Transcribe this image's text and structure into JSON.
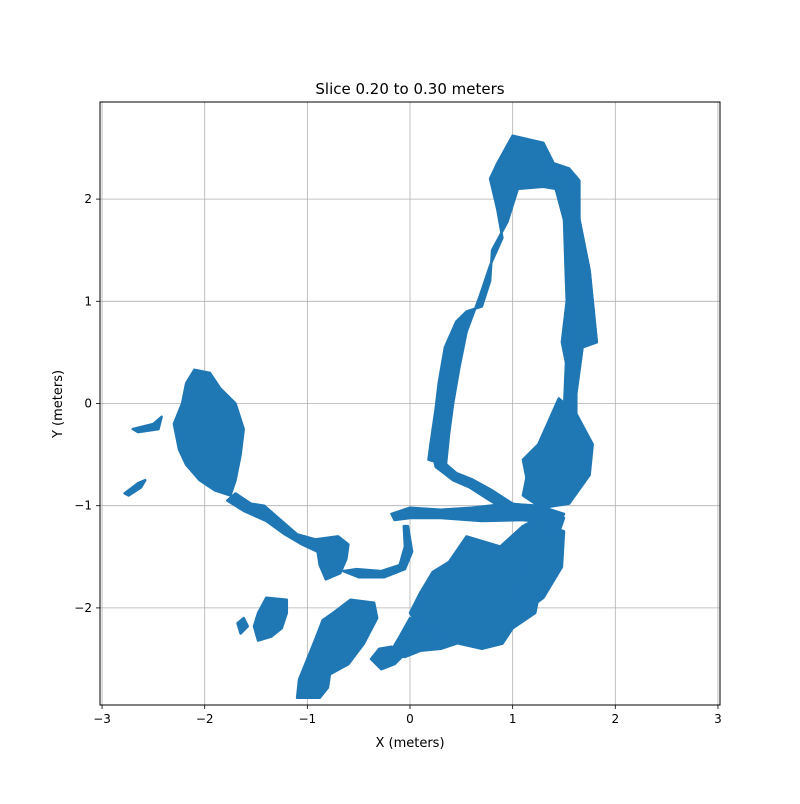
{
  "chart_data": {
    "type": "scatter",
    "title": "Slice 0.20 to 0.30 meters",
    "xlabel": "X (meters)",
    "ylabel": "Y (meters)",
    "xlim": [
      -3.02,
      3.02
    ],
    "ylim": [
      -2.95,
      2.95
    ],
    "xticks": [
      -3,
      -2,
      -1,
      0,
      1,
      2,
      3
    ],
    "yticks": [
      -2,
      -1,
      0,
      1,
      2
    ],
    "xtick_labels": [
      "−3",
      "−2",
      "−1",
      "0",
      "1",
      "2",
      "3"
    ],
    "ytick_labels": [
      "−2",
      "−1",
      "0",
      "1",
      "2"
    ],
    "grid": true,
    "legend": "none",
    "series": [
      {
        "color": "#1f77b4",
        "blobs": [
          [
            [
              1.0,
              2.62
            ],
            [
              1.3,
              2.55
            ],
            [
              1.4,
              2.35
            ],
            [
              1.55,
              2.3
            ],
            [
              1.65,
              2.18
            ],
            [
              1.65,
              1.8
            ],
            [
              1.75,
              1.3
            ],
            [
              1.82,
              0.6
            ],
            [
              1.68,
              0.55
            ],
            [
              1.62,
              0.1
            ],
            [
              1.62,
              -0.35
            ],
            [
              1.72,
              -0.55
            ],
            [
              1.62,
              -0.8
            ],
            [
              1.45,
              -0.98
            ],
            [
              1.25,
              -1.0
            ],
            [
              1.1,
              -0.9
            ],
            [
              1.18,
              -0.5
            ],
            [
              1.5,
              -0.05
            ],
            [
              1.52,
              0.4
            ],
            [
              1.48,
              0.6
            ],
            [
              1.55,
              1.2
            ],
            [
              1.5,
              1.8
            ],
            [
              1.42,
              2.1
            ],
            [
              1.3,
              2.12
            ],
            [
              1.05,
              2.1
            ],
            [
              0.95,
              1.78
            ],
            [
              0.8,
              1.5
            ],
            [
              0.78,
              1.2
            ],
            [
              0.7,
              0.95
            ],
            [
              0.55,
              0.9
            ],
            [
              0.45,
              0.8
            ],
            [
              0.34,
              0.55
            ],
            [
              0.28,
              0.2
            ],
            [
              0.25,
              -0.05
            ],
            [
              0.2,
              -0.4
            ],
            [
              0.18,
              -0.55
            ],
            [
              0.35,
              -0.6
            ],
            [
              0.38,
              -0.3
            ],
            [
              0.42,
              0.0
            ],
            [
              0.48,
              0.35
            ],
            [
              0.55,
              0.7
            ],
            [
              0.68,
              1.05
            ],
            [
              0.78,
              1.35
            ],
            [
              0.9,
              1.62
            ],
            [
              0.85,
              1.9
            ],
            [
              0.78,
              2.2
            ],
            [
              0.85,
              2.35
            ]
          ],
          [
            [
              1.32,
              2.3
            ],
            [
              1.62,
              2.22
            ],
            [
              1.65,
              1.8
            ],
            [
              1.75,
              1.3
            ],
            [
              1.82,
              0.6
            ],
            [
              1.68,
              0.55
            ],
            [
              1.62,
              0.1
            ],
            [
              1.55,
              0.4
            ],
            [
              1.52,
              1.2
            ],
            [
              1.5,
              1.8
            ],
            [
              1.42,
              2.1
            ]
          ],
          [
            [
              1.45,
              0.05
            ],
            [
              1.62,
              -0.1
            ],
            [
              1.78,
              -0.4
            ],
            [
              1.75,
              -0.7
            ],
            [
              1.55,
              -0.98
            ],
            [
              1.3,
              -1.02
            ],
            [
              1.15,
              -0.8
            ],
            [
              1.1,
              -0.55
            ],
            [
              1.25,
              -0.4
            ]
          ],
          [
            [
              0.2,
              -0.4
            ],
            [
              0.3,
              -0.55
            ],
            [
              0.45,
              -0.68
            ],
            [
              0.6,
              -0.74
            ],
            [
              0.8,
              -0.85
            ],
            [
              1.0,
              -0.98
            ],
            [
              1.15,
              -1.0
            ],
            [
              1.12,
              -1.07
            ],
            [
              0.95,
              -1.05
            ],
            [
              0.78,
              -0.95
            ],
            [
              0.58,
              -0.82
            ],
            [
              0.42,
              -0.75
            ],
            [
              0.25,
              -0.62
            ]
          ],
          [
            [
              -0.18,
              -1.08
            ],
            [
              0.0,
              -1.02
            ],
            [
              0.3,
              -1.04
            ],
            [
              0.6,
              -1.02
            ],
            [
              0.95,
              -0.98
            ],
            [
              1.25,
              -1.0
            ],
            [
              1.5,
              -1.08
            ],
            [
              1.45,
              -1.18
            ],
            [
              1.1,
              -1.14
            ],
            [
              0.7,
              -1.15
            ],
            [
              0.3,
              -1.12
            ],
            [
              0.0,
              -1.12
            ],
            [
              -0.15,
              -1.14
            ]
          ],
          [
            [
              -0.02,
              -1.2
            ],
            [
              0.02,
              -1.45
            ],
            [
              -0.05,
              -1.62
            ],
            [
              -0.25,
              -1.7
            ],
            [
              -0.5,
              -1.7
            ],
            [
              -0.65,
              -1.64
            ],
            [
              -0.52,
              -1.62
            ],
            [
              -0.28,
              -1.64
            ],
            [
              -0.1,
              -1.58
            ],
            [
              -0.05,
              -1.4
            ],
            [
              -0.06,
              -1.2
            ]
          ],
          [
            [
              0.55,
              -1.3
            ],
            [
              0.88,
              -1.4
            ],
            [
              1.1,
              -1.2
            ],
            [
              1.38,
              -1.05
            ],
            [
              1.5,
              -1.12
            ],
            [
              1.42,
              -1.35
            ],
            [
              1.28,
              -1.6
            ],
            [
              1.25,
              -1.9
            ],
            [
              1.22,
              -2.05
            ],
            [
              1.0,
              -2.2
            ],
            [
              0.9,
              -2.35
            ],
            [
              0.7,
              -2.4
            ],
            [
              0.48,
              -2.35
            ],
            [
              0.25,
              -2.3
            ],
            [
              0.1,
              -2.2
            ],
            [
              0.0,
              -2.05
            ],
            [
              0.1,
              -1.85
            ],
            [
              0.22,
              -1.65
            ],
            [
              0.38,
              -1.55
            ]
          ],
          [
            [
              1.35,
              -1.2
            ],
            [
              1.5,
              -1.25
            ],
            [
              1.48,
              -1.6
            ],
            [
              1.3,
              -1.9
            ],
            [
              1.1,
              -2.05
            ],
            [
              1.05,
              -1.8
            ],
            [
              1.15,
              -1.55
            ]
          ],
          [
            [
              0.0,
              -2.1
            ],
            [
              0.3,
              -2.25
            ],
            [
              0.45,
              -2.35
            ],
            [
              0.3,
              -2.4
            ],
            [
              0.1,
              -2.42
            ],
            [
              -0.05,
              -2.48
            ],
            [
              -0.2,
              -2.45
            ],
            [
              -0.1,
              -2.28
            ]
          ],
          [
            [
              -0.05,
              -2.45
            ],
            [
              -0.15,
              -2.55
            ],
            [
              -0.28,
              -2.6
            ],
            [
              -0.38,
              -2.5
            ],
            [
              -0.3,
              -2.4
            ],
            [
              -0.18,
              -2.38
            ]
          ],
          [
            [
              -0.58,
              -1.92
            ],
            [
              -0.35,
              -1.95
            ],
            [
              -0.32,
              -2.1
            ],
            [
              -0.45,
              -2.35
            ],
            [
              -0.6,
              -2.55
            ],
            [
              -0.78,
              -2.65
            ],
            [
              -0.8,
              -2.78
            ],
            [
              -0.88,
              -2.88
            ],
            [
              -1.1,
              -2.88
            ],
            [
              -1.08,
              -2.7
            ],
            [
              -1.0,
              -2.5
            ],
            [
              -0.92,
              -2.3
            ],
            [
              -0.85,
              -2.12
            ],
            [
              -0.75,
              -2.05
            ]
          ],
          [
            [
              -1.4,
              -1.9
            ],
            [
              -1.2,
              -1.92
            ],
            [
              -1.2,
              -2.05
            ],
            [
              -1.25,
              -2.2
            ],
            [
              -1.35,
              -2.28
            ],
            [
              -1.48,
              -2.32
            ],
            [
              -1.52,
              -2.18
            ],
            [
              -1.48,
              -2.05
            ]
          ],
          [
            [
              -1.62,
              -2.1
            ],
            [
              -1.58,
              -2.18
            ],
            [
              -1.65,
              -2.25
            ],
            [
              -1.68,
              -2.15
            ]
          ],
          [
            [
              -2.1,
              0.33
            ],
            [
              -1.95,
              0.3
            ],
            [
              -1.85,
              0.15
            ],
            [
              -1.7,
              0.0
            ],
            [
              -1.62,
              -0.25
            ],
            [
              -1.65,
              -0.5
            ],
            [
              -1.7,
              -0.75
            ],
            [
              -1.75,
              -0.9
            ],
            [
              -1.9,
              -0.85
            ],
            [
              -2.05,
              -0.75
            ],
            [
              -2.18,
              -0.6
            ],
            [
              -2.25,
              -0.45
            ],
            [
              -2.3,
              -0.2
            ],
            [
              -2.22,
              0.0
            ],
            [
              -2.18,
              0.2
            ]
          ],
          [
            [
              -1.7,
              -0.88
            ],
            [
              -1.55,
              -0.98
            ],
            [
              -1.42,
              -1.0
            ],
            [
              -1.25,
              -1.15
            ],
            [
              -1.1,
              -1.28
            ],
            [
              -0.92,
              -1.33
            ],
            [
              -0.7,
              -1.3
            ],
            [
              -0.6,
              -1.38
            ],
            [
              -0.62,
              -1.52
            ],
            [
              -0.68,
              -1.66
            ],
            [
              -0.82,
              -1.72
            ],
            [
              -0.88,
              -1.58
            ],
            [
              -0.9,
              -1.45
            ],
            [
              -1.05,
              -1.38
            ],
            [
              -1.22,
              -1.28
            ],
            [
              -1.4,
              -1.15
            ],
            [
              -1.62,
              -1.05
            ],
            [
              -1.78,
              -0.95
            ]
          ],
          [
            [
              -2.7,
              -0.25
            ],
            [
              -2.5,
              -0.2
            ],
            [
              -2.42,
              -0.13
            ],
            [
              -2.45,
              -0.25
            ],
            [
              -2.65,
              -0.28
            ]
          ],
          [
            [
              -2.78,
              -0.88
            ],
            [
              -2.65,
              -0.78
            ],
            [
              -2.58,
              -0.75
            ],
            [
              -2.62,
              -0.82
            ],
            [
              -2.74,
              -0.9
            ]
          ]
        ]
      }
    ]
  }
}
